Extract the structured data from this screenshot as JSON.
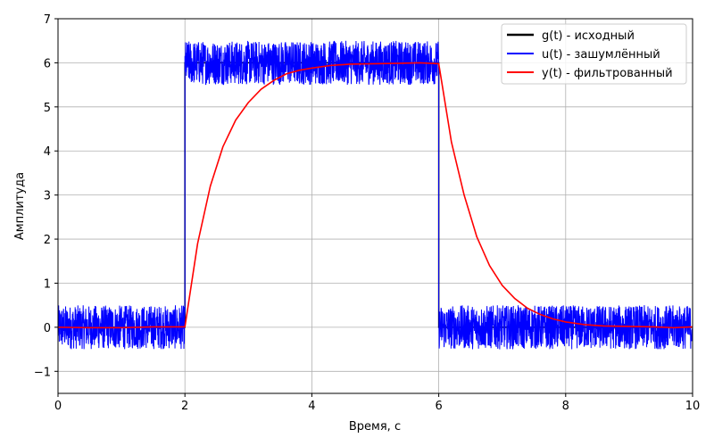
{
  "chart_data": {
    "type": "line",
    "title": "",
    "xlabel": "Время, с",
    "ylabel": "Амплитуда",
    "xlim": [
      0,
      10
    ],
    "ylim": [
      -1.5,
      7
    ],
    "xticks": [
      0,
      2,
      4,
      6,
      8,
      10
    ],
    "yticks": [
      -1,
      0,
      1,
      2,
      3,
      4,
      5,
      6,
      7
    ],
    "grid": true,
    "legend": "top-right",
    "series": [
      {
        "name": "g(t) - исходный",
        "color": "#000000",
        "x": [
          0,
          2,
          2,
          6,
          6,
          10
        ],
        "y": [
          0,
          0,
          6,
          6,
          0,
          0
        ]
      },
      {
        "name": "u(t) - зашумлённый",
        "color": "#0000ff",
        "segments": [
          {
            "x": [
              0,
              2
            ],
            "center": 0,
            "noise_amplitude": 0.5
          },
          {
            "x": [
              2,
              6
            ],
            "center": 6,
            "noise_amplitude": 0.5
          },
          {
            "x": [
              6,
              10
            ],
            "center": 0,
            "noise_amplitude": 0.5
          }
        ]
      },
      {
        "name": "y(t) - фильтрованный",
        "color": "#ff0000",
        "x": [
          0,
          0.5,
          1.0,
          1.5,
          2.0,
          2.2,
          2.4,
          2.6,
          2.8,
          3.0,
          3.2,
          3.4,
          3.6,
          3.8,
          4.0,
          4.3,
          4.6,
          5.0,
          5.4,
          5.7,
          6.0,
          6.2,
          6.4,
          6.6,
          6.8,
          7.0,
          7.2,
          7.4,
          7.6,
          7.8,
          8.0,
          8.3,
          8.6,
          9.0,
          9.4,
          9.7,
          10.0
        ],
        "y": [
          0,
          -0.01,
          -0.01,
          0.01,
          0.01,
          1.9,
          3.2,
          4.1,
          4.7,
          5.1,
          5.4,
          5.6,
          5.75,
          5.83,
          5.88,
          5.94,
          5.97,
          5.98,
          5.99,
          6.0,
          5.98,
          4.2,
          3.0,
          2.05,
          1.4,
          0.95,
          0.65,
          0.43,
          0.29,
          0.19,
          0.12,
          0.06,
          0.03,
          0.02,
          0.01,
          -0.01,
          0.01
        ]
      }
    ]
  }
}
